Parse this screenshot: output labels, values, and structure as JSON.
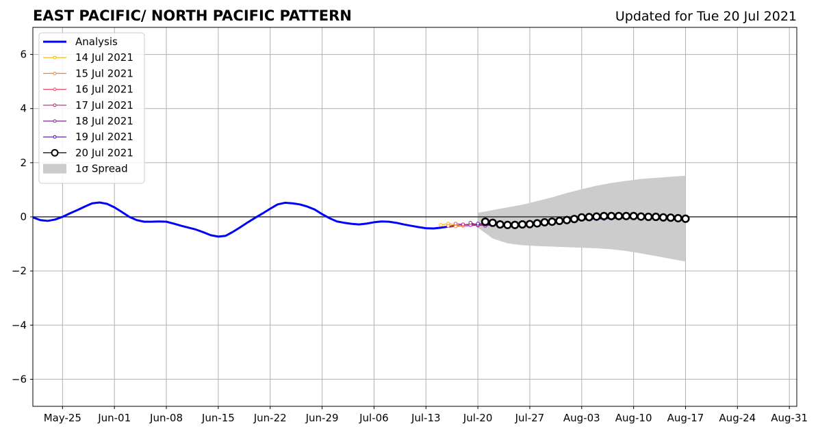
{
  "chart_data": {
    "type": "line",
    "title": "EAST PACIFIC/ NORTH PACIFIC PATTERN",
    "subtitle": "Updated for Tue 20 Jul 2021",
    "x_start": "2021-05-21",
    "xlim": [
      "2021-05-21",
      "2021-09-01"
    ],
    "ylim": [
      -7,
      7
    ],
    "xticks": [
      {
        "label": "May-25",
        "date": "2021-05-25"
      },
      {
        "label": "Jun-01",
        "date": "2021-06-01"
      },
      {
        "label": "Jun-08",
        "date": "2021-06-08"
      },
      {
        "label": "Jun-15",
        "date": "2021-06-15"
      },
      {
        "label": "Jun-22",
        "date": "2021-06-22"
      },
      {
        "label": "Jun-29",
        "date": "2021-06-29"
      },
      {
        "label": "Jul-06",
        "date": "2021-07-06"
      },
      {
        "label": "Jul-13",
        "date": "2021-07-13"
      },
      {
        "label": "Jul-20",
        "date": "2021-07-20"
      },
      {
        "label": "Jul-27",
        "date": "2021-07-27"
      },
      {
        "label": "Aug-03",
        "date": "2021-08-03"
      },
      {
        "label": "Aug-10",
        "date": "2021-08-10"
      },
      {
        "label": "Aug-17",
        "date": "2021-08-17"
      },
      {
        "label": "Aug-24",
        "date": "2021-08-24"
      },
      {
        "label": "Aug-31",
        "date": "2021-08-31"
      }
    ],
    "yticks": [
      {
        "label": "6",
        "value": 6
      },
      {
        "label": "4",
        "value": 4
      },
      {
        "label": "2",
        "value": 2
      },
      {
        "label": "0",
        "value": 0
      },
      {
        "label": "−2",
        "value": -2
      },
      {
        "label": "−4",
        "value": -4
      },
      {
        "label": "−6",
        "value": -6
      }
    ],
    "grid": true,
    "legend_position": "top-left",
    "analysis": {
      "name": "Analysis",
      "color": "#0000ff",
      "x": [
        "2021-05-21",
        "2021-05-22",
        "2021-05-23",
        "2021-05-24",
        "2021-05-25",
        "2021-05-26",
        "2021-05-27",
        "2021-05-28",
        "2021-05-29",
        "2021-05-30",
        "2021-05-31",
        "2021-06-01",
        "2021-06-02",
        "2021-06-03",
        "2021-06-04",
        "2021-06-05",
        "2021-06-06",
        "2021-06-07",
        "2021-06-08",
        "2021-06-09",
        "2021-06-10",
        "2021-06-11",
        "2021-06-12",
        "2021-06-13",
        "2021-06-14",
        "2021-06-15",
        "2021-06-16",
        "2021-06-17",
        "2021-06-18",
        "2021-06-19",
        "2021-06-20",
        "2021-06-21",
        "2021-06-22",
        "2021-06-23",
        "2021-06-24",
        "2021-06-25",
        "2021-06-26",
        "2021-06-27",
        "2021-06-28",
        "2021-06-29",
        "2021-06-30",
        "2021-07-01",
        "2021-07-02",
        "2021-07-03",
        "2021-07-04",
        "2021-07-05",
        "2021-07-06",
        "2021-07-07",
        "2021-07-08",
        "2021-07-09",
        "2021-07-10",
        "2021-07-11",
        "2021-07-12",
        "2021-07-13",
        "2021-07-14",
        "2021-07-15",
        "2021-07-16",
        "2021-07-17",
        "2021-07-18",
        "2021-07-19",
        "2021-07-20"
      ],
      "y": [
        -0.02,
        -0.12,
        -0.15,
        -0.1,
        0.0,
        0.13,
        0.25,
        0.38,
        0.5,
        0.53,
        0.48,
        0.35,
        0.18,
        0.0,
        -0.12,
        -0.18,
        -0.18,
        -0.17,
        -0.18,
        -0.25,
        -0.33,
        -0.4,
        -0.47,
        -0.57,
        -0.68,
        -0.73,
        -0.7,
        -0.55,
        -0.38,
        -0.2,
        -0.03,
        0.13,
        0.3,
        0.46,
        0.52,
        0.5,
        0.46,
        0.38,
        0.27,
        0.1,
        -0.05,
        -0.17,
        -0.22,
        -0.26,
        -0.28,
        -0.25,
        -0.2,
        -0.17,
        -0.18,
        -0.22,
        -0.28,
        -0.33,
        -0.38,
        -0.42,
        -0.43,
        -0.4,
        -0.36,
        -0.33,
        -0.31,
        -0.3,
        -0.29
      ]
    },
    "forecasts": [
      {
        "name": "14 Jul 2021",
        "color": "#ffb000",
        "x": [
          "2021-07-15",
          "2021-07-16",
          "2021-07-17",
          "2021-07-18",
          "2021-07-19",
          "2021-07-20",
          "2021-07-21",
          "2021-07-22",
          "2021-07-23",
          "2021-07-24",
          "2021-07-25",
          "2021-07-26",
          "2021-07-27",
          "2021-07-28",
          "2021-07-29",
          "2021-07-30",
          "2021-07-31",
          "2021-08-01",
          "2021-08-02",
          "2021-08-03",
          "2021-08-04",
          "2021-08-05",
          "2021-08-06",
          "2021-08-07",
          "2021-08-08",
          "2021-08-09",
          "2021-08-10",
          "2021-08-11"
        ],
        "y": [
          -0.3,
          -0.25,
          -0.3,
          -0.32,
          -0.3,
          -0.28,
          -0.27,
          -0.25,
          -0.22,
          -0.22,
          -0.21,
          -0.2,
          -0.18,
          -0.17,
          -0.15,
          -0.13,
          -0.12,
          -0.1,
          -0.09,
          -0.08,
          -0.07,
          -0.06,
          -0.05,
          -0.05,
          -0.04,
          -0.04,
          -0.03,
          -0.03
        ]
      },
      {
        "name": "15 Jul 2021",
        "color": "#ff7f2a",
        "x": [
          "2021-07-16",
          "2021-07-17",
          "2021-07-18",
          "2021-07-19",
          "2021-07-20",
          "2021-07-21",
          "2021-07-22",
          "2021-07-23",
          "2021-07-24",
          "2021-07-25",
          "2021-07-26",
          "2021-07-27",
          "2021-07-28",
          "2021-07-29",
          "2021-07-30",
          "2021-07-31",
          "2021-08-01",
          "2021-08-02",
          "2021-08-03",
          "2021-08-04",
          "2021-08-05",
          "2021-08-06",
          "2021-08-07",
          "2021-08-08",
          "2021-08-09",
          "2021-08-10",
          "2021-08-11",
          "2021-08-12"
        ],
        "y": [
          -0.33,
          -0.35,
          -0.33,
          -0.3,
          -0.28,
          -0.27,
          -0.26,
          -0.25,
          -0.24,
          -0.22,
          -0.2,
          -0.18,
          -0.16,
          -0.14,
          -0.12,
          -0.1,
          -0.09,
          -0.08,
          -0.07,
          -0.06,
          -0.05,
          -0.05,
          -0.04,
          -0.03,
          -0.03,
          -0.02,
          -0.02,
          -0.02
        ]
      },
      {
        "name": "16 Jul 2021",
        "color": "#e8496f",
        "x": [
          "2021-07-17",
          "2021-07-18",
          "2021-07-19",
          "2021-07-20",
          "2021-07-21",
          "2021-07-22",
          "2021-07-23",
          "2021-07-24",
          "2021-07-25",
          "2021-07-26",
          "2021-07-27",
          "2021-07-28",
          "2021-07-29",
          "2021-07-30",
          "2021-07-31",
          "2021-08-01",
          "2021-08-02",
          "2021-08-03",
          "2021-08-04",
          "2021-08-05",
          "2021-08-06",
          "2021-08-07",
          "2021-08-08",
          "2021-08-09",
          "2021-08-10",
          "2021-08-11",
          "2021-08-12",
          "2021-08-13"
        ],
        "y": [
          -0.25,
          -0.28,
          -0.3,
          -0.3,
          -0.29,
          -0.28,
          -0.27,
          -0.26,
          -0.24,
          -0.22,
          -0.2,
          -0.18,
          -0.16,
          -0.14,
          -0.12,
          -0.1,
          -0.09,
          -0.08,
          -0.07,
          -0.06,
          -0.05,
          -0.05,
          -0.04,
          -0.04,
          -0.03,
          -0.03,
          -0.03,
          -0.02
        ]
      },
      {
        "name": "17 Jul 2021",
        "color": "#c51b8a",
        "x": [
          "2021-07-18",
          "2021-07-19",
          "2021-07-20",
          "2021-07-21",
          "2021-07-22",
          "2021-07-23",
          "2021-07-24",
          "2021-07-25",
          "2021-07-26",
          "2021-07-27",
          "2021-07-28",
          "2021-07-29",
          "2021-07-30",
          "2021-07-31",
          "2021-08-01",
          "2021-08-02",
          "2021-08-03",
          "2021-08-04",
          "2021-08-05",
          "2021-08-06",
          "2021-08-07",
          "2021-08-08",
          "2021-08-09",
          "2021-08-10",
          "2021-08-11",
          "2021-08-12",
          "2021-08-13",
          "2021-08-14"
        ],
        "y": [
          -0.28,
          -0.3,
          -0.32,
          -0.3,
          -0.28,
          -0.27,
          -0.26,
          -0.25,
          -0.23,
          -0.21,
          -0.19,
          -0.17,
          -0.15,
          -0.13,
          -0.11,
          -0.1,
          -0.09,
          -0.08,
          -0.07,
          -0.06,
          -0.05,
          -0.05,
          -0.04,
          -0.04,
          -0.03,
          -0.03,
          -0.03,
          -0.02
        ]
      },
      {
        "name": "18 Jul 2021",
        "color": "#8b1aa8",
        "x": [
          "2021-07-19",
          "2021-07-20",
          "2021-07-21",
          "2021-07-22",
          "2021-07-23",
          "2021-07-24",
          "2021-07-25",
          "2021-07-26",
          "2021-07-27",
          "2021-07-28",
          "2021-07-29",
          "2021-07-30",
          "2021-07-31",
          "2021-08-01",
          "2021-08-02",
          "2021-08-03",
          "2021-08-04",
          "2021-08-05",
          "2021-08-06",
          "2021-08-07",
          "2021-08-08",
          "2021-08-09",
          "2021-08-10",
          "2021-08-11",
          "2021-08-12",
          "2021-08-13",
          "2021-08-14",
          "2021-08-15"
        ],
        "y": [
          -0.22,
          -0.3,
          -0.33,
          -0.3,
          -0.28,
          -0.27,
          -0.25,
          -0.24,
          -0.22,
          -0.2,
          -0.18,
          -0.16,
          -0.14,
          -0.12,
          -0.11,
          -0.1,
          -0.09,
          -0.08,
          -0.07,
          -0.06,
          -0.05,
          -0.05,
          -0.04,
          -0.04,
          -0.03,
          -0.03,
          -0.03,
          -0.02
        ]
      },
      {
        "name": "19 Jul 2021",
        "color": "#4b0fa0",
        "x": [
          "2021-07-20",
          "2021-07-21",
          "2021-07-22",
          "2021-07-23",
          "2021-07-24",
          "2021-07-25",
          "2021-07-26",
          "2021-07-27",
          "2021-07-28",
          "2021-07-29",
          "2021-07-30",
          "2021-07-31",
          "2021-08-01",
          "2021-08-02",
          "2021-08-03",
          "2021-08-04",
          "2021-08-05",
          "2021-08-06",
          "2021-08-07",
          "2021-08-08",
          "2021-08-09",
          "2021-08-10",
          "2021-08-11",
          "2021-08-12",
          "2021-08-13",
          "2021-08-14",
          "2021-08-15",
          "2021-08-16"
        ],
        "y": [
          -0.25,
          -0.28,
          -0.3,
          -0.3,
          -0.29,
          -0.28,
          -0.26,
          -0.24,
          -0.22,
          -0.2,
          -0.18,
          -0.16,
          -0.14,
          -0.12,
          -0.1,
          -0.09,
          -0.08,
          -0.07,
          -0.06,
          -0.05,
          -0.05,
          -0.04,
          -0.04,
          -0.03,
          -0.03,
          -0.03,
          -0.02,
          -0.02
        ]
      },
      {
        "name": "20 Jul 2021",
        "color": "#000000",
        "x": [
          "2021-07-21",
          "2021-07-22",
          "2021-07-23",
          "2021-07-24",
          "2021-07-25",
          "2021-07-26",
          "2021-07-27",
          "2021-07-28",
          "2021-07-29",
          "2021-07-30",
          "2021-07-31",
          "2021-08-01",
          "2021-08-02",
          "2021-08-03",
          "2021-08-04",
          "2021-08-05",
          "2021-08-06",
          "2021-08-07",
          "2021-08-08",
          "2021-08-09",
          "2021-08-10",
          "2021-08-11",
          "2021-08-12",
          "2021-08-13",
          "2021-08-14",
          "2021-08-15",
          "2021-08-16",
          "2021-08-17"
        ],
        "y": [
          -0.18,
          -0.22,
          -0.28,
          -0.3,
          -0.3,
          -0.28,
          -0.27,
          -0.24,
          -0.2,
          -0.18,
          -0.15,
          -0.12,
          -0.08,
          -0.02,
          -0.01,
          0.01,
          0.03,
          0.03,
          0.03,
          0.03,
          0.03,
          0.01,
          0.0,
          0.0,
          -0.02,
          -0.03,
          -0.05,
          -0.07
        ]
      }
    ],
    "spread": {
      "name": "1σ Spread",
      "color": "#cccccc",
      "x": [
        "2021-07-20",
        "2021-07-22",
        "2021-07-24",
        "2021-07-26",
        "2021-07-28",
        "2021-07-30",
        "2021-08-01",
        "2021-08-03",
        "2021-08-05",
        "2021-08-07",
        "2021-08-09",
        "2021-08-11",
        "2021-08-13",
        "2021-08-15",
        "2021-08-17"
      ],
      "upper": [
        0.15,
        0.25,
        0.35,
        0.45,
        0.58,
        0.72,
        0.88,
        1.02,
        1.15,
        1.25,
        1.33,
        1.4,
        1.44,
        1.48,
        1.52
      ],
      "lower": [
        -0.4,
        -0.8,
        -0.98,
        -1.05,
        -1.08,
        -1.1,
        -1.12,
        -1.14,
        -1.16,
        -1.2,
        -1.26,
        -1.35,
        -1.45,
        -1.55,
        -1.65
      ]
    }
  }
}
